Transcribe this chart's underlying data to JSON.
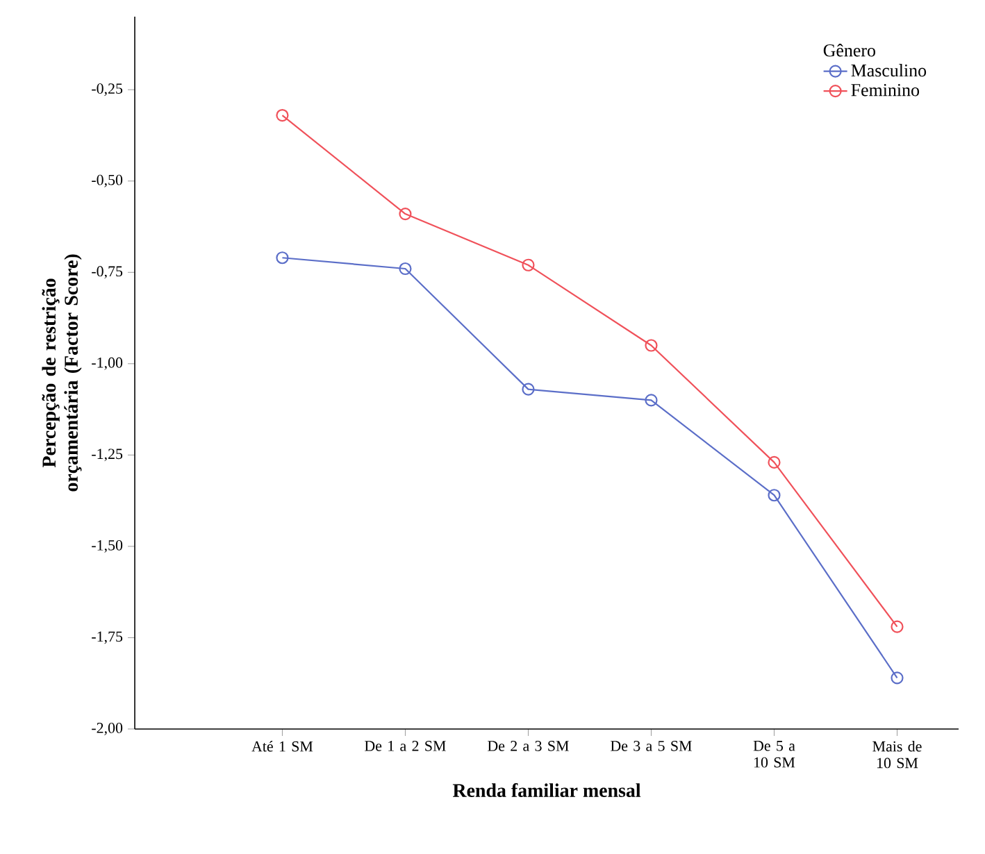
{
  "chart_data": {
    "type": "line",
    "xlabel": "Renda familiar mensal",
    "ylabel": "Percepção de restrição orçamentária (Factor Score)",
    "legend_title": "Gênero",
    "categories": [
      "Até 1 SM",
      "De 1 a 2 SM",
      "De 2 a 3 SM",
      "De 3 a 5 SM",
      "De 5 a 10 SM",
      "Mais de 10 SM"
    ],
    "series": [
      {
        "name": "Masculino",
        "color": "#5b6ec8",
        "values": [
          -0.71,
          -0.74,
          -1.07,
          -1.1,
          -1.36,
          -1.86
        ]
      },
      {
        "name": "Feminino",
        "color": "#f0515a",
        "values": [
          -0.32,
          -0.59,
          -0.73,
          -0.95,
          -1.27,
          -1.72
        ]
      }
    ],
    "ylim": [
      -2.0,
      -0.05
    ],
    "yticks": [
      {
        "value": -2.0,
        "label": "-2,00"
      },
      {
        "value": -1.75,
        "label": "-1,75"
      },
      {
        "value": -1.5,
        "label": "-1,50"
      },
      {
        "value": -1.25,
        "label": "-1,25"
      },
      {
        "value": -1.0,
        "label": "-1,00"
      },
      {
        "value": -0.75,
        "label": "-0,75"
      },
      {
        "value": -0.5,
        "label": "-0,50"
      },
      {
        "value": -0.25,
        "label": "-0,25"
      }
    ],
    "grid": false,
    "legend": "top right",
    "marker": "circle",
    "line_style": "solid"
  }
}
